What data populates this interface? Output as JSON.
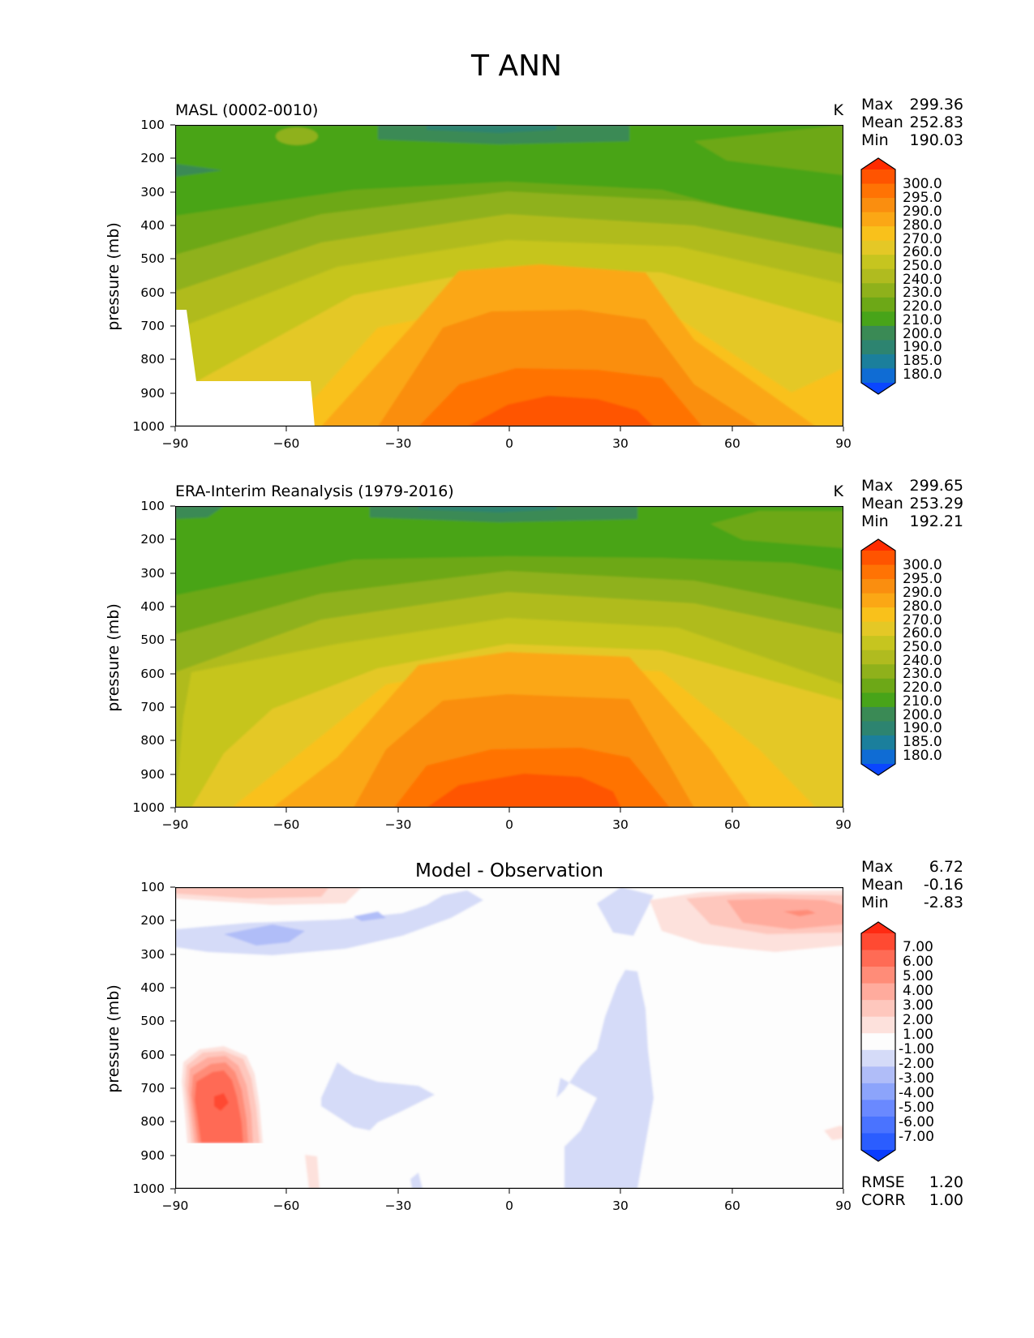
{
  "figure_title": "T ANN",
  "chart_data": [
    {
      "type": "heatmap",
      "title": "MASL (0002-0010)",
      "units": "K",
      "xlabel": "",
      "ylabel": "pressure (mb)",
      "xlim": [
        -90,
        90
      ],
      "ylim": [
        1000,
        100
      ],
      "xticks": [
        "−90",
        "−60",
        "−30",
        "0",
        "30",
        "60",
        "90"
      ],
      "yticks": [
        "100",
        "200",
        "300",
        "400",
        "500",
        "600",
        "700",
        "800",
        "900",
        "1000"
      ],
      "stats": [
        [
          "Max",
          "299.36"
        ],
        [
          "Mean",
          "252.83"
        ],
        [
          "Min",
          "190.03"
        ]
      ],
      "levels": [
        "300.0",
        "295.0",
        "290.0",
        "280.0",
        "270.0",
        "260.0",
        "250.0",
        "240.0",
        "230.0",
        "220.0",
        "210.0",
        "200.0",
        "190.0",
        "185.0",
        "180.0"
      ],
      "missing_region": "below surface at high southern latitudes (~-90 to -52, ~650-1000 mb)"
    },
    {
      "type": "heatmap",
      "title": "ERA-Interim Reanalysis (1979-2016)",
      "units": "K",
      "xlabel": "",
      "ylabel": "pressure (mb)",
      "xlim": [
        -90,
        90
      ],
      "ylim": [
        1000,
        100
      ],
      "xticks": [
        "−90",
        "−60",
        "−30",
        "0",
        "30",
        "60",
        "90"
      ],
      "yticks": [
        "100",
        "200",
        "300",
        "400",
        "500",
        "600",
        "700",
        "800",
        "900",
        "1000"
      ],
      "stats": [
        [
          "Max",
          "299.65"
        ],
        [
          "Mean",
          "253.29"
        ],
        [
          "Min",
          "192.21"
        ]
      ],
      "levels": [
        "300.0",
        "295.0",
        "290.0",
        "280.0",
        "270.0",
        "260.0",
        "250.0",
        "240.0",
        "230.0",
        "220.0",
        "210.0",
        "200.0",
        "190.0",
        "185.0",
        "180.0"
      ]
    },
    {
      "type": "heatmap",
      "title": "Model - Observation",
      "xlabel": "",
      "ylabel": "pressure (mb)",
      "xlim": [
        -90,
        90
      ],
      "ylim": [
        1000,
        100
      ],
      "xticks": [
        "−90",
        "−60",
        "−30",
        "0",
        "30",
        "60",
        "90"
      ],
      "yticks": [
        "100",
        "200",
        "300",
        "400",
        "500",
        "600",
        "700",
        "800",
        "900",
        "1000"
      ],
      "stats": [
        [
          "Max",
          "6.72"
        ],
        [
          "Mean",
          "-0.16"
        ],
        [
          "Min",
          "-2.83"
        ]
      ],
      "levels": [
        "7.00",
        "6.00",
        "5.00",
        "4.00",
        "3.00",
        "2.00",
        "1.00",
        "-1.00",
        "-2.00",
        "-3.00",
        "-4.00",
        "-5.00",
        "-6.00",
        "-7.00"
      ],
      "metrics": [
        [
          "RMSE",
          "1.20"
        ],
        [
          "CORR",
          "1.00"
        ]
      ]
    }
  ],
  "colors": {
    "temp_bands": [
      "#0a46ff",
      "#0f6cd4",
      "#1b7f9c",
      "#2d8470",
      "#3a8a55",
      "#48a419",
      "#6da817",
      "#8fb11b",
      "#b0bb1f",
      "#c6c51f",
      "#e4c826",
      "#f9c11b",
      "#fba715",
      "#fa8e0f",
      "#ff7304",
      "#ff5400",
      "#ff2b00"
    ],
    "diff_bands": [
      "#0a3dff",
      "#2b5dff",
      "#4a73ff",
      "#6a89ff",
      "#8ca4fb",
      "#b0bdf8",
      "#d5dbf8",
      "#fdfdfd",
      "#fde1dc",
      "#fec7bd",
      "#ffab9d",
      "#ff8c78",
      "#ff6b55",
      "#ff4a32",
      "#ff2a12"
    ]
  }
}
